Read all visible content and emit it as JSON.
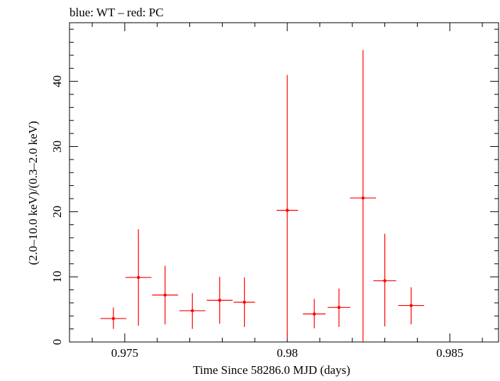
{
  "chart_data": {
    "type": "scatter",
    "title": "blue: WT – red: PC",
    "xlabel": "Time Since 58286.0 MJD (days)",
    "ylabel": "(2.0–10.0 keV)/(0.3–2.0 keV)",
    "xlim": [
      0.9733,
      0.9865
    ],
    "ylim": [
      0,
      49
    ],
    "x_ticks": [
      0.975,
      0.98,
      0.985
    ],
    "x_tick_labels": [
      "0.975",
      "0.98",
      "0.985"
    ],
    "y_ticks": [
      0,
      10,
      20,
      30,
      40
    ],
    "y_tick_labels": [
      "0",
      "10",
      "20",
      "30",
      "40"
    ],
    "grid": false,
    "series": [
      {
        "color": "#ff0000",
        "points": [
          {
            "x": 0.97465,
            "xerr": 0.0004,
            "y": 3.6,
            "ylo": 2.0,
            "yhi": 5.3
          },
          {
            "x": 0.97542,
            "xerr": 0.0004,
            "y": 9.9,
            "ylo": 2.5,
            "yhi": 17.3
          },
          {
            "x": 0.97624,
            "xerr": 0.0004,
            "y": 7.2,
            "ylo": 2.7,
            "yhi": 11.7
          },
          {
            "x": 0.97708,
            "xerr": 0.0004,
            "y": 4.8,
            "ylo": 2.0,
            "yhi": 7.5
          },
          {
            "x": 0.97792,
            "xerr": 0.0004,
            "y": 6.4,
            "ylo": 2.8,
            "yhi": 10.0
          },
          {
            "x": 0.97868,
            "xerr": 0.00033,
            "y": 6.1,
            "ylo": 2.3,
            "yhi": 9.9
          },
          {
            "x": 0.98,
            "xerr": 0.00033,
            "y": 20.2,
            "ylo": 0.5,
            "yhi": 41.0
          },
          {
            "x": 0.98083,
            "xerr": 0.00035,
            "y": 4.3,
            "ylo": 2.1,
            "yhi": 6.6
          },
          {
            "x": 0.98159,
            "xerr": 0.00035,
            "y": 5.3,
            "ylo": 2.3,
            "yhi": 8.2
          },
          {
            "x": 0.98233,
            "xerr": 0.0004,
            "y": 22.1,
            "ylo": 0.0,
            "yhi": 44.8
          },
          {
            "x": 0.983,
            "xerr": 0.00035,
            "y": 9.4,
            "ylo": 2.4,
            "yhi": 16.6
          },
          {
            "x": 0.98381,
            "xerr": 0.0004,
            "y": 5.6,
            "ylo": 2.7,
            "yhi": 8.4
          }
        ]
      }
    ]
  }
}
